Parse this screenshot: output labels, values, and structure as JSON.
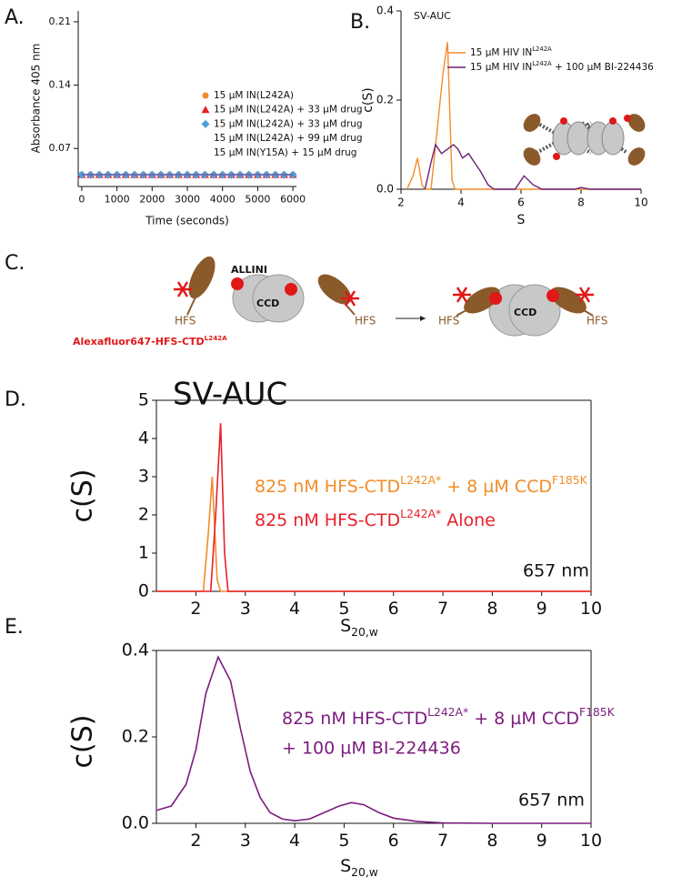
{
  "chart_data": [
    {
      "type": "line",
      "panel": "A.",
      "x_label": "Time (seconds)",
      "y_label": "Absorbance 405 nm",
      "x": [
        0,
        250,
        500,
        750,
        1000,
        1250,
        1500,
        1750,
        2000,
        2250,
        2500,
        2750,
        3000,
        3250,
        3500,
        3750,
        4000,
        4250,
        4500,
        4750,
        5000,
        5250,
        5500,
        5750,
        6000
      ],
      "xlim": [
        -100,
        6100
      ],
      "xticks": [
        0,
        1000,
        2000,
        3000,
        4000,
        5000,
        6000
      ],
      "ylim": [
        0.028,
        0.222
      ],
      "yticks": [
        0.07,
        0.14,
        0.21
      ],
      "series": [
        {
          "name": "15 µM IN(L242A)",
          "color": "#f28c28",
          "marker": "circle",
          "values": [
            0.041,
            0.041,
            0.041,
            0.041,
            0.041,
            0.041,
            0.041,
            0.041,
            0.041,
            0.041,
            0.041,
            0.041,
            0.041,
            0.041,
            0.041,
            0.041,
            0.041,
            0.041,
            0.041,
            0.041,
            0.041,
            0.041,
            0.041,
            0.041,
            0.041
          ]
        },
        {
          "name": "15 µM IN(L242A) + 33 µM drug",
          "color": "#e8202a",
          "marker": "triangle",
          "values": [
            0.041,
            0.041,
            0.041,
            0.041,
            0.041,
            0.041,
            0.041,
            0.041,
            0.041,
            0.041,
            0.041,
            0.041,
            0.041,
            0.041,
            0.041,
            0.041,
            0.041,
            0.041,
            0.041,
            0.041,
            0.041,
            0.041,
            0.041,
            0.041,
            0.041
          ]
        },
        {
          "name": "15 µM IN(L242A) + 33 µM drug",
          "color": "#4f9fd8",
          "marker": "diamond",
          "values": [
            0.041,
            0.041,
            0.041,
            0.041,
            0.041,
            0.041,
            0.041,
            0.041,
            0.041,
            0.041,
            0.041,
            0.041,
            0.041,
            0.041,
            0.041,
            0.041,
            0.041,
            0.041,
            0.041,
            0.041,
            0.041,
            0.041,
            0.041,
            0.041,
            0.041
          ]
        },
        {
          "name": "15 µM IN(L242A) + 99 µM drug",
          "color": "#8a6bb0",
          "values": [
            0.041,
            0.041,
            0.041,
            0.041,
            0.041,
            0.041,
            0.041,
            0.041,
            0.041,
            0.041,
            0.041,
            0.041,
            0.041,
            0.041,
            0.041,
            0.041,
            0.041,
            0.041,
            0.041,
            0.041,
            0.041,
            0.041,
            0.041,
            0.041,
            0.041
          ]
        },
        {
          "name": "15 µM IN(Y15A) + 15 µM drug",
          "color": "#6a5fa8",
          "values": [
            0.041,
            0.041,
            0.041,
            0.041,
            0.041,
            0.041,
            0.041,
            0.041,
            0.041,
            0.041,
            0.041,
            0.041,
            0.041,
            0.041,
            0.041,
            0.041,
            0.041,
            0.041,
            0.041,
            0.041,
            0.041,
            0.041,
            0.041,
            0.041,
            0.041
          ]
        }
      ]
    },
    {
      "type": "line",
      "panel": "B.",
      "title": "SV-AUC",
      "x_label": "S",
      "y_label": "c(S)",
      "xlim": [
        2,
        10
      ],
      "xticks": [
        2,
        4,
        6,
        8,
        10
      ],
      "ylim": [
        0,
        0.4
      ],
      "yticks": [
        {
          "value": 0,
          "label": "0.0"
        },
        0.2,
        0.4
      ],
      "series": [
        {
          "name": [
            "15 µM HIV IN",
            {
              "sup": "L242A"
            }
          ],
          "color": "#f28c28",
          "x": [
            2.2,
            2.4,
            2.55,
            2.7,
            2.8,
            3.0,
            3.2,
            3.4,
            3.55,
            3.7,
            3.8,
            10
          ],
          "values": [
            0,
            0.03,
            0.07,
            0.01,
            0,
            0,
            0.13,
            0.26,
            0.33,
            0.02,
            0,
            0
          ]
        },
        {
          "name": [
            "15 µM HIV IN",
            {
              "sup": "L242A"
            },
            " + 100 µM BI-224436"
          ],
          "color": "#6b1f78",
          "x": [
            2.8,
            3.0,
            3.15,
            3.35,
            3.55,
            3.75,
            3.9,
            4.05,
            4.25,
            4.45,
            4.65,
            4.9,
            5.1,
            5.8,
            6.1,
            6.4,
            6.7,
            7.8,
            8.0,
            8.3,
            10
          ],
          "values": [
            0,
            0.06,
            0.1,
            0.08,
            0.09,
            0.1,
            0.09,
            0.07,
            0.08,
            0.06,
            0.04,
            0.01,
            0,
            0,
            0.03,
            0.01,
            0,
            0,
            0.004,
            0,
            0
          ]
        }
      ]
    },
    {
      "type": "line",
      "panel": "D.",
      "title": "SV-AUC",
      "x_label": [
        "S",
        {
          "sub": "20,w"
        }
      ],
      "y_label": "c(S)",
      "annotation": "657 nm",
      "xlim": [
        1.2,
        10
      ],
      "xticks": [
        2,
        3,
        4,
        5,
        6,
        7,
        8,
        9,
        10
      ],
      "ylim": [
        0,
        5
      ],
      "yticks": [
        0,
        1,
        2,
        3,
        4,
        5
      ],
      "series": [
        {
          "name": [
            "825 nM HFS-CTD",
            {
              "sup": "L242A*"
            },
            " + 8 µM CCD",
            {
              "sup": "F185K"
            }
          ],
          "color": "#f28c28",
          "x": [
            1.2,
            2.15,
            2.25,
            2.33,
            2.43,
            2.5,
            10
          ],
          "values": [
            0,
            0,
            1.5,
            3.0,
            0.3,
            0,
            0
          ]
        },
        {
          "name": [
            "825 nM HFS-CTD",
            {
              "sup": "L242A*"
            },
            " Alone"
          ],
          "color": "#e8202a",
          "x": [
            1.2,
            2.3,
            2.4,
            2.5,
            2.58,
            2.65,
            10
          ],
          "values": [
            0,
            0,
            2.0,
            4.4,
            1.0,
            0,
            0
          ]
        }
      ]
    },
    {
      "type": "line",
      "panel": "E.",
      "x_label": [
        "S",
        {
          "sub": "20,w"
        }
      ],
      "y_label": "c(S)",
      "annotation": "657 nm",
      "xlim": [
        1.2,
        10
      ],
      "xticks": [
        2,
        3,
        4,
        5,
        6,
        7,
        8,
        9,
        10
      ],
      "ylim": [
        0,
        0.4
      ],
      "yticks": [
        {
          "value": 0,
          "label": "0.0"
        },
        0.2,
        0.4
      ],
      "series": [
        {
          "name": [
            "825 nM HFS-CTD",
            {
              "sup": "L242A*"
            },
            " + 8 µM CCD",
            {
              "sup": "F185K"
            },
            {
              "newline": "+ 100 µM BI-224436"
            }
          ],
          "color": "#7b1c7e",
          "x": [
            1.2,
            1.5,
            1.8,
            2.0,
            2.2,
            2.45,
            2.7,
            2.9,
            3.1,
            3.3,
            3.5,
            3.75,
            4.0,
            4.3,
            4.6,
            4.9,
            5.15,
            5.4,
            5.7,
            6.0,
            6.5,
            7.0,
            8,
            9,
            10
          ],
          "values": [
            0.03,
            0.04,
            0.09,
            0.17,
            0.3,
            0.385,
            0.33,
            0.22,
            0.12,
            0.06,
            0.025,
            0.01,
            0.006,
            0.01,
            0.025,
            0.04,
            0.048,
            0.043,
            0.025,
            0.012,
            0.004,
            0.001,
            0,
            0,
            0
          ]
        }
      ]
    }
  ],
  "diagram": {
    "panel": "C.",
    "allini": "ALLINI",
    "ccd_left": "CCD",
    "hfs_left": "HFS",
    "hfs_middle": "HFS",
    "caption": [
      "Alexafluor647-HFS-CTD",
      {
        "sup": "L242A"
      }
    ],
    "ccd_right": "CCD",
    "hfs_right_a": "HFS",
    "hfs_right_b": "HFS"
  }
}
